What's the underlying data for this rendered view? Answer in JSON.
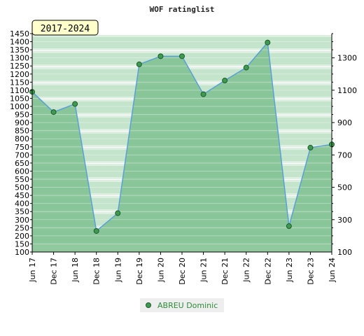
{
  "chart_data": {
    "type": "area",
    "title": "WOF ratinglist",
    "period_badge": "2017-2024",
    "categories": [
      "Jun 17",
      "Dec 17",
      "Jun 18",
      "Dec 18",
      "Jun 19",
      "Dec 19",
      "Jun 20",
      "Dec 20",
      "Jun 21",
      "Dec 21",
      "Jun 22",
      "Dec 22",
      "Jun 23",
      "Dec 23",
      "Jun 24"
    ],
    "series": [
      {
        "name": "ABREU Dominic",
        "values": [
          1090,
          965,
          1015,
          230,
          340,
          1260,
          1310,
          1310,
          1075,
          1160,
          1240,
          1395,
          260,
          745,
          765
        ]
      }
    ],
    "ylim": [
      100,
      1450
    ],
    "y_left_ticks": [
      100,
      150,
      200,
      250,
      300,
      350,
      400,
      450,
      500,
      550,
      600,
      650,
      700,
      750,
      800,
      850,
      900,
      950,
      1000,
      1050,
      1100,
      1150,
      1200,
      1250,
      1300,
      1350,
      1400,
      1450
    ],
    "y_right_ticks": [
      100,
      300,
      500,
      700,
      900,
      1100,
      1300
    ],
    "legend_position": "bottom-center",
    "colors": {
      "line": "#5aa0d8",
      "area": "#7ec08e",
      "marker": "#3e9a50",
      "marker_stroke": "#1f5a2a",
      "legend_text": "#2e8b3a",
      "badge_bg": "#ffffcc"
    }
  }
}
